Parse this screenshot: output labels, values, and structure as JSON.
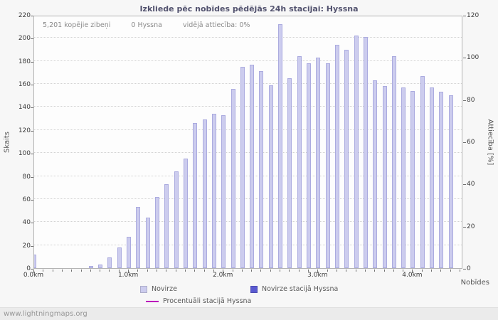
{
  "header": {
    "title": "Izkliede pēc nobīdes pēdējās 24h stacijai: Hyssna"
  },
  "stats": {
    "total_strikes": "5,201 kopējie zibeņi",
    "station_strikes": "0 Hyssna",
    "avg_ratio": "vidējā attiecība: 0%"
  },
  "footer": {
    "watermark": "www.lightningmaps.org"
  },
  "colors": {
    "bar": "#ccccee",
    "station_bar": "#5a5ad1",
    "percent_line": "#bb00bb",
    "title": "#52526e"
  },
  "chart_data": {
    "type": "bar",
    "title": "Izkliede pēc nobīdes pēdējās 24h stacijai: Hyssna",
    "xlabel": "Nobīdes",
    "ylabel_left": "Skaits",
    "ylabel_right": "Attiecība [%]",
    "x_axis_range_km": [
      0,
      4.53
    ],
    "ylim_left": [
      0,
      220
    ],
    "ylim_right": [
      0,
      120
    ],
    "grid": true,
    "bar_width_km": 0.045,
    "y_ticks_left": [
      "0",
      "20",
      "40",
      "60",
      "80",
      "100",
      "120",
      "140",
      "160",
      "180",
      "200",
      "220"
    ],
    "y_ticks_right": [
      "0",
      "20",
      "40",
      "60",
      "80",
      "100",
      "120"
    ],
    "x_ticks": [
      {
        "km": 0,
        "label": "0.0km"
      },
      {
        "km": 1,
        "label": "1.0km"
      },
      {
        "km": 2,
        "label": "2.0km"
      },
      {
        "km": 3,
        "label": "3.0km"
      },
      {
        "km": 4,
        "label": "4.0km"
      }
    ],
    "series": [
      {
        "name": "Novirze",
        "color": "#ccccee",
        "type": "bar",
        "points": [
          [
            0.0,
            12
          ],
          [
            0.6,
            2
          ],
          [
            0.7,
            3
          ],
          [
            0.8,
            9
          ],
          [
            0.9,
            18
          ],
          [
            1.0,
            27
          ],
          [
            1.1,
            53
          ],
          [
            1.2,
            44
          ],
          [
            1.3,
            62
          ],
          [
            1.4,
            73
          ],
          [
            1.5,
            84
          ],
          [
            1.6,
            95
          ],
          [
            1.7,
            126
          ],
          [
            1.8,
            129
          ],
          [
            1.9,
            134
          ],
          [
            2.0,
            133
          ],
          [
            2.1,
            156
          ],
          [
            2.2,
            175
          ],
          [
            2.3,
            177
          ],
          [
            2.4,
            171
          ],
          [
            2.5,
            159
          ],
          [
            2.6,
            212
          ],
          [
            2.7,
            165
          ],
          [
            2.8,
            184
          ],
          [
            2.9,
            178
          ],
          [
            3.0,
            183
          ],
          [
            3.1,
            178
          ],
          [
            3.2,
            194
          ],
          [
            3.3,
            190
          ],
          [
            3.4,
            202
          ],
          [
            3.5,
            201
          ],
          [
            3.6,
            163
          ],
          [
            3.7,
            158
          ],
          [
            3.8,
            184
          ],
          [
            3.9,
            157
          ],
          [
            4.0,
            154
          ],
          [
            4.1,
            167
          ],
          [
            4.2,
            157
          ],
          [
            4.3,
            153
          ],
          [
            4.4,
            150
          ]
        ]
      },
      {
        "name": "Novirze stacijā Hyssna",
        "color": "#5a5ad1",
        "type": "bar",
        "points": []
      },
      {
        "name": "Procentuāli stacijā Hyssna",
        "color": "#bb00bb",
        "type": "line",
        "points": []
      }
    ],
    "legend": [
      {
        "label": "Novirze",
        "swatch": "box",
        "color": "#ccccee"
      },
      {
        "label": "Novirze stacijā Hyssna",
        "swatch": "box",
        "color": "#5a5ad1"
      },
      {
        "label": "Procentuāli stacijā Hyssna",
        "swatch": "line",
        "color": "#bb00bb"
      }
    ]
  }
}
